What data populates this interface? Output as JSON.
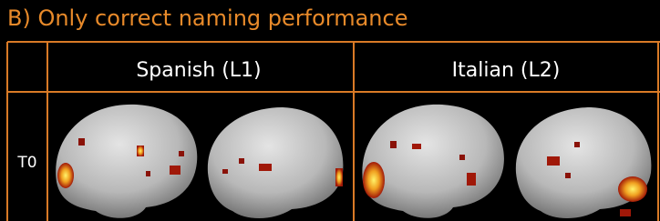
{
  "header": {
    "title": "B) Only correct naming performance"
  },
  "table": {
    "columns": [
      "Spanish (L1)",
      "Italian (L2)"
    ],
    "rows": [
      {
        "label": "T0"
      }
    ]
  }
}
